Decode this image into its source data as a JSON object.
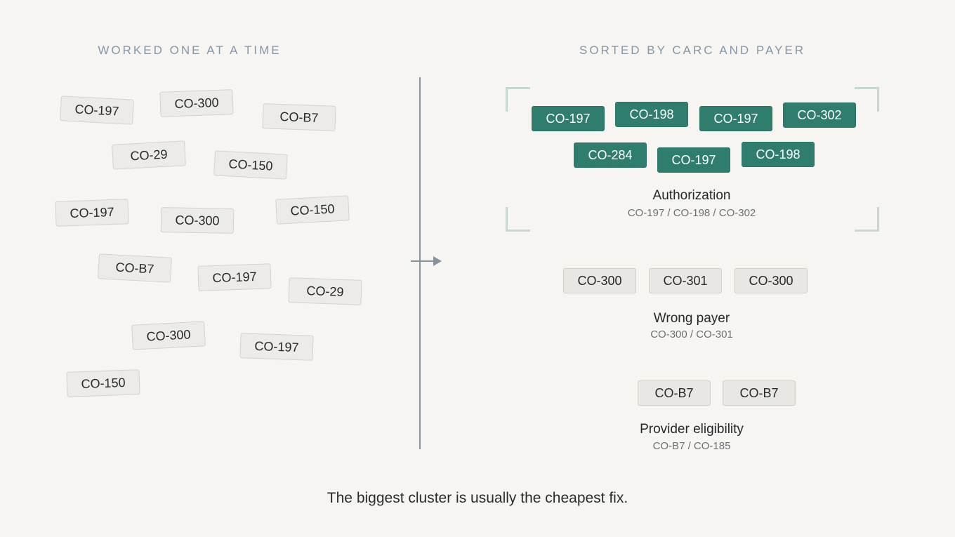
{
  "left_heading": "WORKED ONE AT A TIME",
  "right_heading": "SORTED BY CARC AND PAYER",
  "loose_tags": [
    "CO-197",
    "CO-300",
    "CO-B7",
    "CO-29",
    "CO-150",
    "CO-197",
    "CO-300",
    "CO-150",
    "CO-B7",
    "CO-197",
    "CO-29",
    "CO-300",
    "CO-197",
    "CO-150"
  ],
  "groups": {
    "authorization": {
      "title": "Authorization",
      "codes": "CO-197 / CO-198 / CO-302",
      "tags": [
        "CO-197",
        "CO-198",
        "CO-197",
        "CO-302",
        "CO-284",
        "CO-197",
        "CO-198"
      ]
    },
    "wrong_payer": {
      "title": "Wrong payer",
      "codes": "CO-300 / CO-301",
      "tags": [
        "CO-300",
        "CO-301",
        "CO-300"
      ]
    },
    "provider_eligibility": {
      "title": "Provider eligibility",
      "codes": "CO-B7 / CO-185",
      "tags": [
        "CO-B7",
        "CO-B7"
      ]
    }
  },
  "caption": "The biggest cluster is usually the cheapest fix.",
  "colors": {
    "accent": "#2f7d6d",
    "background": "#f7f5f1",
    "divider": "#8393a0",
    "heading": "#8497a8"
  }
}
